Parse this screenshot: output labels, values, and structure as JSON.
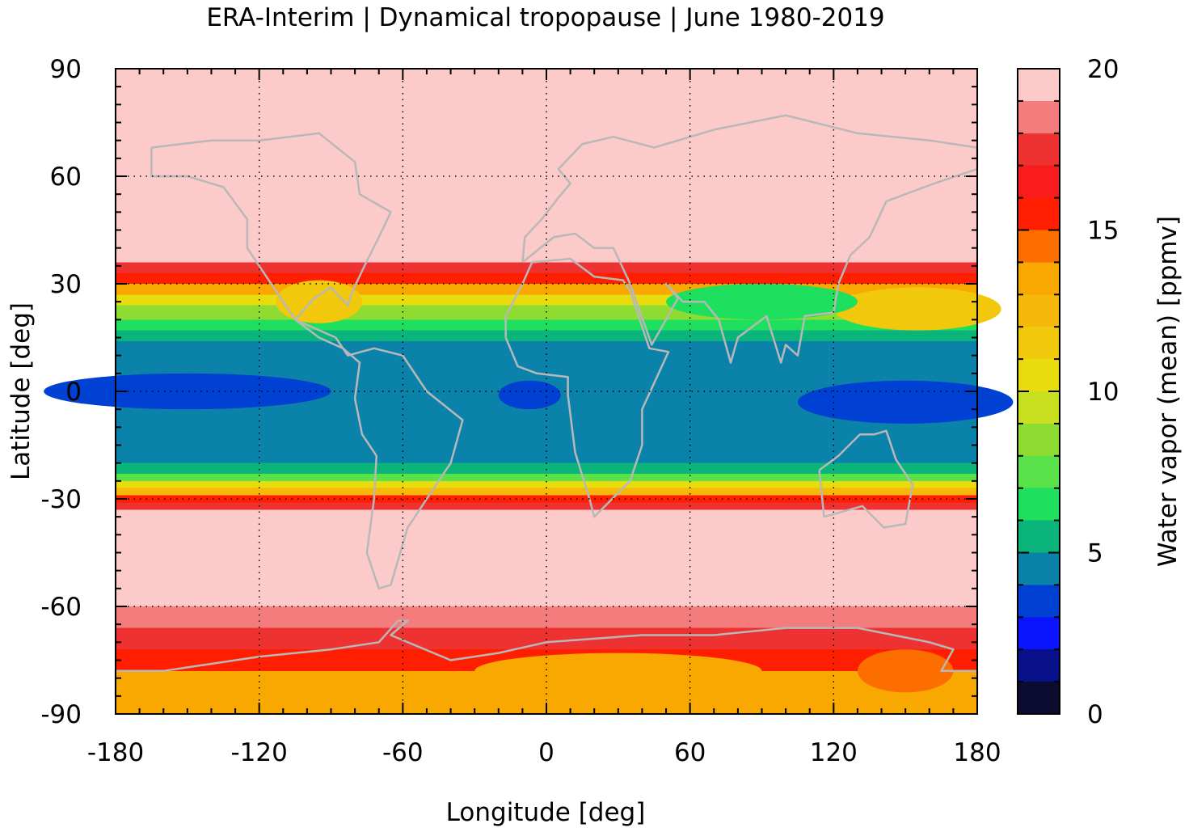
{
  "chart_data": {
    "type": "heatmap",
    "title": "ERA-Interim | Dynamical tropopause | June 1980-2019",
    "xlabel": "Longitude [deg]",
    "ylabel": "Latitude [deg]",
    "xlim": [
      -180,
      180
    ],
    "ylim": [
      -90,
      90
    ],
    "xticks": [
      -180,
      -120,
      -60,
      0,
      60,
      120,
      180
    ],
    "xtick_labels": [
      "-180",
      "-120",
      "-60",
      "0",
      "60",
      "120",
      "180"
    ],
    "yticks": [
      90,
      60,
      30,
      0,
      -30,
      -60,
      -90
    ],
    "ytick_labels": [
      "90",
      "60",
      "30",
      "0",
      "-30",
      "-60",
      "-90"
    ],
    "grid": true,
    "grid_style": "dotted",
    "overlay": "coastlines",
    "coastline_color": "#b8b8b8",
    "colorbar": {
      "label": "Water vapor (mean) [ppmv]",
      "range": [
        0,
        20
      ],
      "ticks": [
        0,
        5,
        10,
        15,
        20
      ],
      "tick_labels": [
        "0",
        "5",
        "10",
        "15",
        "20"
      ],
      "levels": [
        {
          "from": 0,
          "to": 1,
          "color": "#0c0c30"
        },
        {
          "from": 1,
          "to": 2,
          "color": "#08108a"
        },
        {
          "from": 2,
          "to": 3,
          "color": "#0a14ff"
        },
        {
          "from": 3,
          "to": 4,
          "color": "#0040d2"
        },
        {
          "from": 4,
          "to": 5,
          "color": "#0a82aa"
        },
        {
          "from": 5,
          "to": 6,
          "color": "#0ab47a"
        },
        {
          "from": 6,
          "to": 7,
          "color": "#1ee05e"
        },
        {
          "from": 7,
          "to": 8,
          "color": "#5ae24a"
        },
        {
          "from": 8,
          "to": 9,
          "color": "#8edc32"
        },
        {
          "from": 9,
          "to": 10,
          "color": "#c8e020"
        },
        {
          "from": 10,
          "to": 11,
          "color": "#e8dc0e"
        },
        {
          "from": 11,
          "to": 12,
          "color": "#f2c80c"
        },
        {
          "from": 12,
          "to": 13,
          "color": "#f6b80a"
        },
        {
          "from": 13,
          "to": 14,
          "color": "#f8a800"
        },
        {
          "from": 14,
          "to": 15,
          "color": "#fc6e00"
        },
        {
          "from": 15,
          "to": 16,
          "color": "#ff1e00"
        },
        {
          "from": 16,
          "to": 17,
          "color": "#f81c1c"
        },
        {
          "from": 17,
          "to": 18,
          "color": "#ee3232"
        },
        {
          "from": 18,
          "to": 19,
          "color": "#f47c7c"
        },
        {
          "from": 19,
          "to": 20,
          "color": "#fdcaca"
        }
      ]
    },
    "zonal_structure_note_values": {
      "high_latitudes_value": 20,
      "tropical_minimum_value": 3.5,
      "tropical_band_value": 4.5,
      "antarctic_value": 13
    },
    "bands": [
      {
        "lat_from": 36,
        "lat_to": 90,
        "value": 19.5
      },
      {
        "lat_from": -60,
        "lat_to": -33,
        "value": 19.5
      },
      {
        "lat_from": 33,
        "lat_to": 36,
        "value": 17
      },
      {
        "lat_from": 30,
        "lat_to": 33,
        "value": 15.5
      },
      {
        "lat_from": 27,
        "lat_to": 30,
        "value": 13.5
      },
      {
        "lat_from": 24,
        "lat_to": 27,
        "value": 10.5
      },
      {
        "lat_from": 20,
        "lat_to": 24,
        "value": 8.5
      },
      {
        "lat_from": 17,
        "lat_to": 20,
        "value": 6.5
      },
      {
        "lat_from": 14,
        "lat_to": 17,
        "value": 5.5
      },
      {
        "lat_from": -20,
        "lat_to": 14,
        "value": 4.5
      },
      {
        "lat_from": -23,
        "lat_to": -20,
        "value": 5.5
      },
      {
        "lat_from": -25,
        "lat_to": -23,
        "value": 7.5
      },
      {
        "lat_from": -27,
        "lat_to": -25,
        "value": 10
      },
      {
        "lat_from": -29,
        "lat_to": -27,
        "value": 12.5
      },
      {
        "lat_from": -31,
        "lat_to": -29,
        "value": 15.5
      },
      {
        "lat_from": -33,
        "lat_to": -31,
        "value": 17
      },
      {
        "lat_from": -66,
        "lat_to": -60,
        "value": 18.5
      },
      {
        "lat_from": -72,
        "lat_to": -66,
        "value": 17
      },
      {
        "lat_from": -78,
        "lat_to": -72,
        "value": 15.5
      },
      {
        "lat_from": -90,
        "lat_to": -78,
        "value": 13
      }
    ],
    "anomalies": [
      {
        "lon": -150,
        "lat": 0,
        "rlon": 60,
        "rlat": 5,
        "value": 3.5
      },
      {
        "lon": -7,
        "lat": -1,
        "rlon": 13,
        "rlat": 4,
        "value": 3.5
      },
      {
        "lon": 150,
        "lat": -3,
        "rlon": 45,
        "rlat": 6,
        "value": 3.5
      },
      {
        "lon": 155,
        "lat": 23,
        "rlon": 35,
        "rlat": 6,
        "value": 11
      },
      {
        "lon": -95,
        "lat": 25,
        "rlon": 18,
        "rlat": 6,
        "value": 11
      },
      {
        "lon": 90,
        "lat": 25,
        "rlon": 40,
        "rlat": 5,
        "value": 6.5
      },
      {
        "lon": 30,
        "lat": -78,
        "rlon": 60,
        "rlat": 5,
        "value": 13.5
      },
      {
        "lon": 150,
        "lat": -78,
        "rlon": 20,
        "rlat": 6,
        "value": 14.5
      }
    ]
  }
}
